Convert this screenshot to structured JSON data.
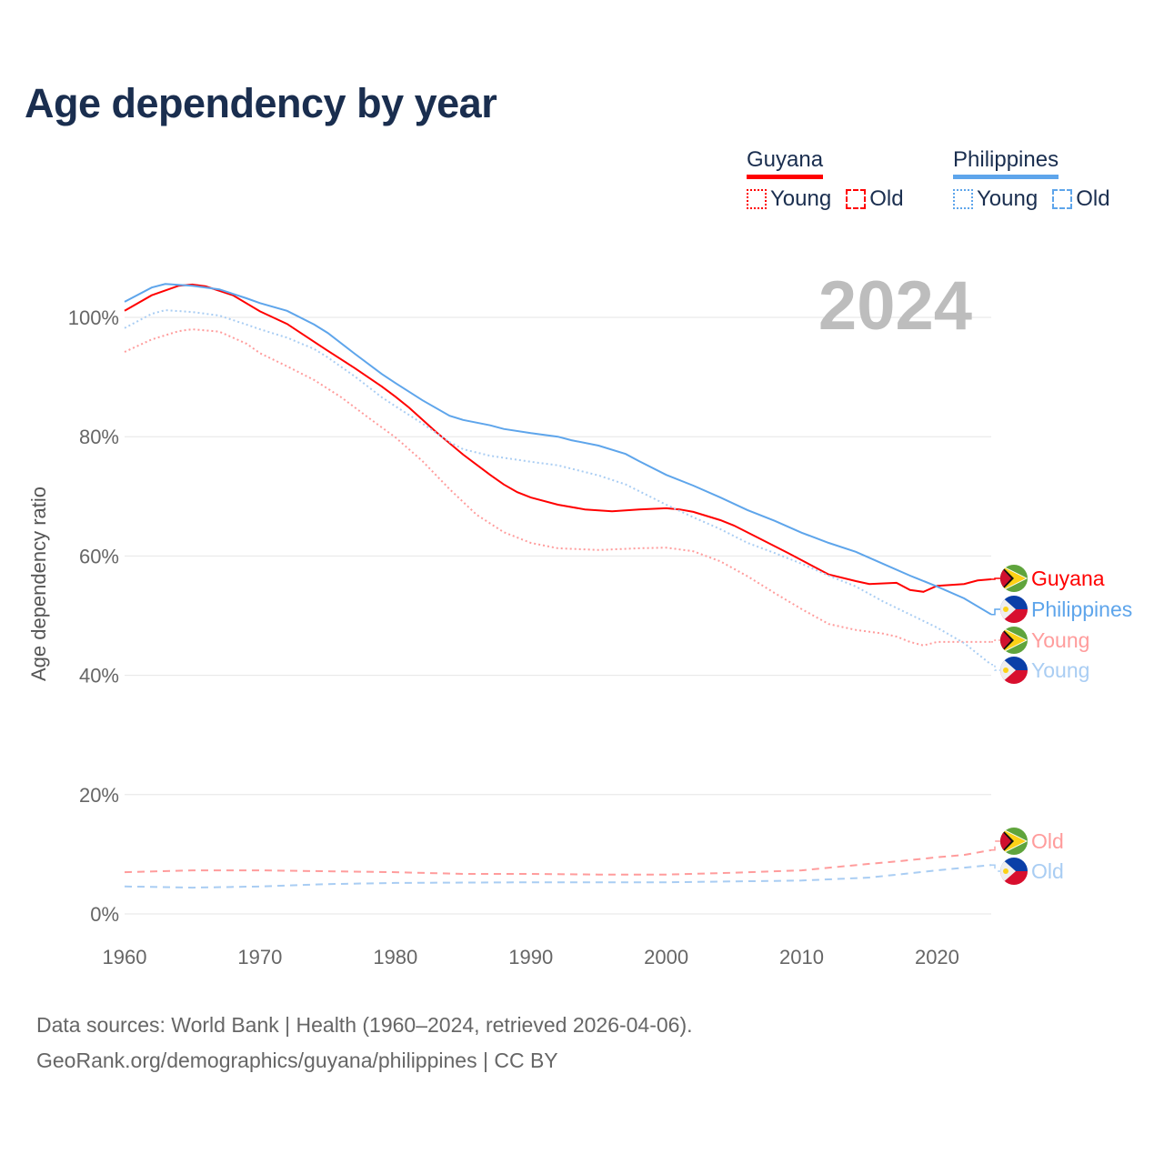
{
  "title": "Age dependency by year",
  "legend": {
    "groups": [
      {
        "name": "Guyana",
        "color": "#ff0000",
        "items": [
          "Young",
          "Old"
        ]
      },
      {
        "name": "Philippines",
        "color": "#5ea5eb",
        "items": [
          "Young",
          "Old"
        ]
      }
    ]
  },
  "year_label": "2024",
  "footer": {
    "line1": "Data sources: World Bank | Health (1960–2024, retrieved 2026-04-06).",
    "line2": "GeoRank.org/demographics/guyana/philippines | CC BY"
  },
  "chart_data": {
    "type": "line",
    "title": "Age dependency by year",
    "xlabel": "",
    "ylabel": "Age dependency ratio",
    "xlim": [
      1960,
      2024
    ],
    "ylim": [
      0,
      110
    ],
    "x_ticks": [
      "1960",
      "1970",
      "1980",
      "1990",
      "2000",
      "2010",
      "2020"
    ],
    "y_ticks": [
      "0%",
      "20%",
      "40%",
      "60%",
      "80%",
      "100%"
    ],
    "grid": true,
    "legend_position": "top-right",
    "series": [
      {
        "name": "Guyana",
        "end_label": "Guyana",
        "country": "guyana",
        "color": "#ff0000",
        "style": "solid",
        "points": [
          [
            1960,
            101.1
          ],
          [
            1962,
            103.7
          ],
          [
            1964,
            105.3
          ],
          [
            1965,
            105.5
          ],
          [
            1966,
            105.2
          ],
          [
            1968,
            103.7
          ],
          [
            1970,
            101
          ],
          [
            1972,
            98.9
          ],
          [
            1973,
            97.4
          ],
          [
            1975,
            94.4
          ],
          [
            1977,
            91.5
          ],
          [
            1979,
            88.4
          ],
          [
            1980,
            86.7
          ],
          [
            1981,
            84.9
          ],
          [
            1983,
            80.8
          ],
          [
            1985,
            77
          ],
          [
            1987,
            73.6
          ],
          [
            1988,
            72
          ],
          [
            1989,
            70.7
          ],
          [
            1990,
            69.8
          ],
          [
            1992,
            68.6
          ],
          [
            1994,
            67.8
          ],
          [
            1996,
            67.5
          ],
          [
            1998,
            67.8
          ],
          [
            2000,
            68
          ],
          [
            2001,
            67.8
          ],
          [
            2002,
            67.4
          ],
          [
            2004,
            66
          ],
          [
            2005,
            65.1
          ],
          [
            2007,
            62.8
          ],
          [
            2009,
            60.5
          ],
          [
            2010,
            59.3
          ],
          [
            2012,
            56.9
          ],
          [
            2014,
            55.8
          ],
          [
            2015,
            55.3
          ],
          [
            2017,
            55.5
          ],
          [
            2018,
            54.3
          ],
          [
            2019,
            54
          ],
          [
            2020,
            55
          ],
          [
            2022,
            55.3
          ],
          [
            2023,
            55.9
          ],
          [
            2024,
            56.1
          ]
        ]
      },
      {
        "name": "Philippines",
        "end_label": "Philippines",
        "country": "philippines",
        "color": "#5ea5eb",
        "style": "solid",
        "points": [
          [
            1960,
            102.6
          ],
          [
            1962,
            105
          ],
          [
            1963,
            105.6
          ],
          [
            1965,
            105.3
          ],
          [
            1967,
            104.7
          ],
          [
            1969,
            103.2
          ],
          [
            1970,
            102.4
          ],
          [
            1972,
            101.1
          ],
          [
            1974,
            98.8
          ],
          [
            1975,
            97.4
          ],
          [
            1977,
            93.9
          ],
          [
            1979,
            90.5
          ],
          [
            1980,
            89
          ],
          [
            1982,
            86.1
          ],
          [
            1984,
            83.5
          ],
          [
            1985,
            82.8
          ],
          [
            1987,
            81.9
          ],
          [
            1988,
            81.3
          ],
          [
            1990,
            80.6
          ],
          [
            1992,
            80
          ],
          [
            1993,
            79.4
          ],
          [
            1995,
            78.5
          ],
          [
            1997,
            77.1
          ],
          [
            1998,
            75.9
          ],
          [
            2000,
            73.6
          ],
          [
            2002,
            71.8
          ],
          [
            2004,
            69.8
          ],
          [
            2006,
            67.7
          ],
          [
            2008,
            65.9
          ],
          [
            2010,
            63.9
          ],
          [
            2012,
            62.2
          ],
          [
            2014,
            60.7
          ],
          [
            2016,
            58.7
          ],
          [
            2018,
            56.7
          ],
          [
            2020,
            54.9
          ],
          [
            2022,
            52.9
          ],
          [
            2024,
            50.2
          ]
        ]
      },
      {
        "name": "Guyana Young",
        "end_label": "Young",
        "country": "guyana",
        "color": "#ff9c9c",
        "style": "dotted",
        "points": [
          [
            1960,
            94.2
          ],
          [
            1962,
            96.3
          ],
          [
            1964,
            97.7
          ],
          [
            1965,
            98
          ],
          [
            1967,
            97.6
          ],
          [
            1969,
            95.6
          ],
          [
            1970,
            94
          ],
          [
            1972,
            91.8
          ],
          [
            1974,
            89.5
          ],
          [
            1976,
            86.6
          ],
          [
            1978,
            83.2
          ],
          [
            1980,
            79.9
          ],
          [
            1982,
            75.9
          ],
          [
            1984,
            71.2
          ],
          [
            1986,
            66.9
          ],
          [
            1988,
            64
          ],
          [
            1990,
            62.2
          ],
          [
            1992,
            61.3
          ],
          [
            1995,
            61
          ],
          [
            1998,
            61.3
          ],
          [
            2000,
            61.4
          ],
          [
            2002,
            60.8
          ],
          [
            2004,
            59.1
          ],
          [
            2006,
            56.6
          ],
          [
            2008,
            53.8
          ],
          [
            2010,
            51.1
          ],
          [
            2012,
            48.6
          ],
          [
            2014,
            47.6
          ],
          [
            2016,
            47
          ],
          [
            2017,
            46.5
          ],
          [
            2018,
            45.6
          ],
          [
            2019,
            45
          ],
          [
            2020,
            45.6
          ],
          [
            2022,
            45.6
          ],
          [
            2024,
            45.6
          ]
        ]
      },
      {
        "name": "Philippines Young",
        "end_label": "Young",
        "country": "philippines",
        "color": "#a9cdf3",
        "style": "dotted",
        "points": [
          [
            1960,
            98.2
          ],
          [
            1962,
            100.6
          ],
          [
            1963,
            101.2
          ],
          [
            1965,
            100.9
          ],
          [
            1967,
            100.3
          ],
          [
            1969,
            98.8
          ],
          [
            1970,
            98
          ],
          [
            1972,
            96.6
          ],
          [
            1974,
            94.7
          ],
          [
            1975,
            93.3
          ],
          [
            1977,
            90.1
          ],
          [
            1979,
            86.6
          ],
          [
            1980,
            85.1
          ],
          [
            1982,
            82.2
          ],
          [
            1984,
            79.1
          ],
          [
            1985,
            77.9
          ],
          [
            1987,
            76.8
          ],
          [
            1990,
            75.8
          ],
          [
            1992,
            75.2
          ],
          [
            1995,
            73.5
          ],
          [
            1997,
            72
          ],
          [
            2000,
            68.6
          ],
          [
            2002,
            66.5
          ],
          [
            2004,
            64.5
          ],
          [
            2006,
            62.2
          ],
          [
            2008,
            60.5
          ],
          [
            2010,
            58.7
          ],
          [
            2012,
            56.7
          ],
          [
            2014,
            54.9
          ],
          [
            2016,
            52.4
          ],
          [
            2018,
            50.2
          ],
          [
            2020,
            48
          ],
          [
            2022,
            45.4
          ],
          [
            2024,
            41.8
          ]
        ]
      },
      {
        "name": "Guyana Old",
        "end_label": "Old",
        "country": "guyana",
        "color": "#ff9c9c",
        "style": "dashed",
        "points": [
          [
            1960,
            7
          ],
          [
            1965,
            7.3
          ],
          [
            1970,
            7.3
          ],
          [
            1980,
            7
          ],
          [
            1985,
            6.7
          ],
          [
            1990,
            6.7
          ],
          [
            1995,
            6.6
          ],
          [
            2000,
            6.6
          ],
          [
            2005,
            6.9
          ],
          [
            2010,
            7.3
          ],
          [
            2015,
            8.4
          ],
          [
            2017,
            8.8
          ],
          [
            2020,
            9.5
          ],
          [
            2022,
            9.9
          ],
          [
            2024,
            10.7
          ]
        ]
      },
      {
        "name": "Philippines Old",
        "end_label": "Old",
        "country": "philippines",
        "color": "#a9cdf3",
        "style": "dashed",
        "points": [
          [
            1960,
            4.6
          ],
          [
            1965,
            4.4
          ],
          [
            1970,
            4.6
          ],
          [
            1975,
            5
          ],
          [
            1980,
            5.2
          ],
          [
            1990,
            5.3
          ],
          [
            2000,
            5.3
          ],
          [
            2010,
            5.6
          ],
          [
            2015,
            6.1
          ],
          [
            2020,
            7.3
          ],
          [
            2024,
            8.2
          ]
        ]
      }
    ]
  }
}
